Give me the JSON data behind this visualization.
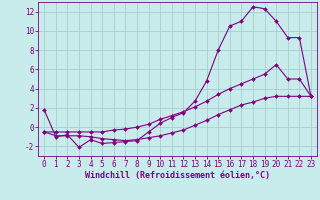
{
  "xlabel": "Windchill (Refroidissement éolien,°C)",
  "ylabel": "",
  "bg_color": "#c8ecec",
  "line_color": "#800080",
  "grid_color": "#a0c8c8",
  "xlim": [
    -0.5,
    23.5
  ],
  "ylim": [
    -3,
    13
  ],
  "xticks": [
    0,
    1,
    2,
    3,
    4,
    5,
    6,
    7,
    8,
    9,
    10,
    11,
    12,
    13,
    14,
    15,
    16,
    17,
    18,
    19,
    20,
    21,
    22,
    23
  ],
  "yticks": [
    -2,
    0,
    2,
    4,
    6,
    8,
    10,
    12
  ],
  "line1_x": [
    0,
    1,
    2,
    3,
    4,
    5,
    6,
    7,
    8,
    9,
    10,
    11,
    12,
    13,
    14,
    15,
    16,
    17,
    18,
    19,
    20,
    21,
    22,
    23
  ],
  "line1_y": [
    1.8,
    -1.0,
    -0.8,
    -2.1,
    -1.3,
    -1.7,
    -1.6,
    -1.5,
    -1.4,
    -0.5,
    0.4,
    1.0,
    1.5,
    2.7,
    4.8,
    8.0,
    10.5,
    11.0,
    12.5,
    12.3,
    11.0,
    9.3,
    9.3,
    3.2
  ],
  "line2_x": [
    0,
    1,
    2,
    3,
    4,
    5,
    6,
    7,
    8,
    9,
    10,
    11,
    12,
    13,
    14,
    15,
    16,
    17,
    18,
    19,
    20,
    21,
    22,
    23
  ],
  "line2_y": [
    -0.5,
    -0.5,
    -0.5,
    -0.5,
    -0.5,
    -0.5,
    -0.3,
    -0.2,
    0.0,
    0.3,
    0.8,
    1.2,
    1.6,
    2.1,
    2.7,
    3.4,
    4.0,
    4.5,
    5.0,
    5.5,
    6.5,
    5.0,
    5.0,
    3.2
  ],
  "line3_x": [
    0,
    1,
    2,
    3,
    4,
    5,
    6,
    7,
    8,
    9,
    10,
    11,
    12,
    13,
    14,
    15,
    16,
    17,
    18,
    19,
    20,
    21,
    22,
    23
  ],
  "line3_y": [
    -0.5,
    -0.9,
    -0.9,
    -0.9,
    -1.0,
    -1.2,
    -1.3,
    -1.4,
    -1.3,
    -1.1,
    -0.9,
    -0.6,
    -0.3,
    0.2,
    0.7,
    1.3,
    1.8,
    2.3,
    2.6,
    3.0,
    3.2,
    3.2,
    3.2,
    3.2
  ],
  "xlabel_fontsize": 6,
  "tick_fontsize": 5.5,
  "marker_size": 2.0,
  "line_width": 0.8
}
